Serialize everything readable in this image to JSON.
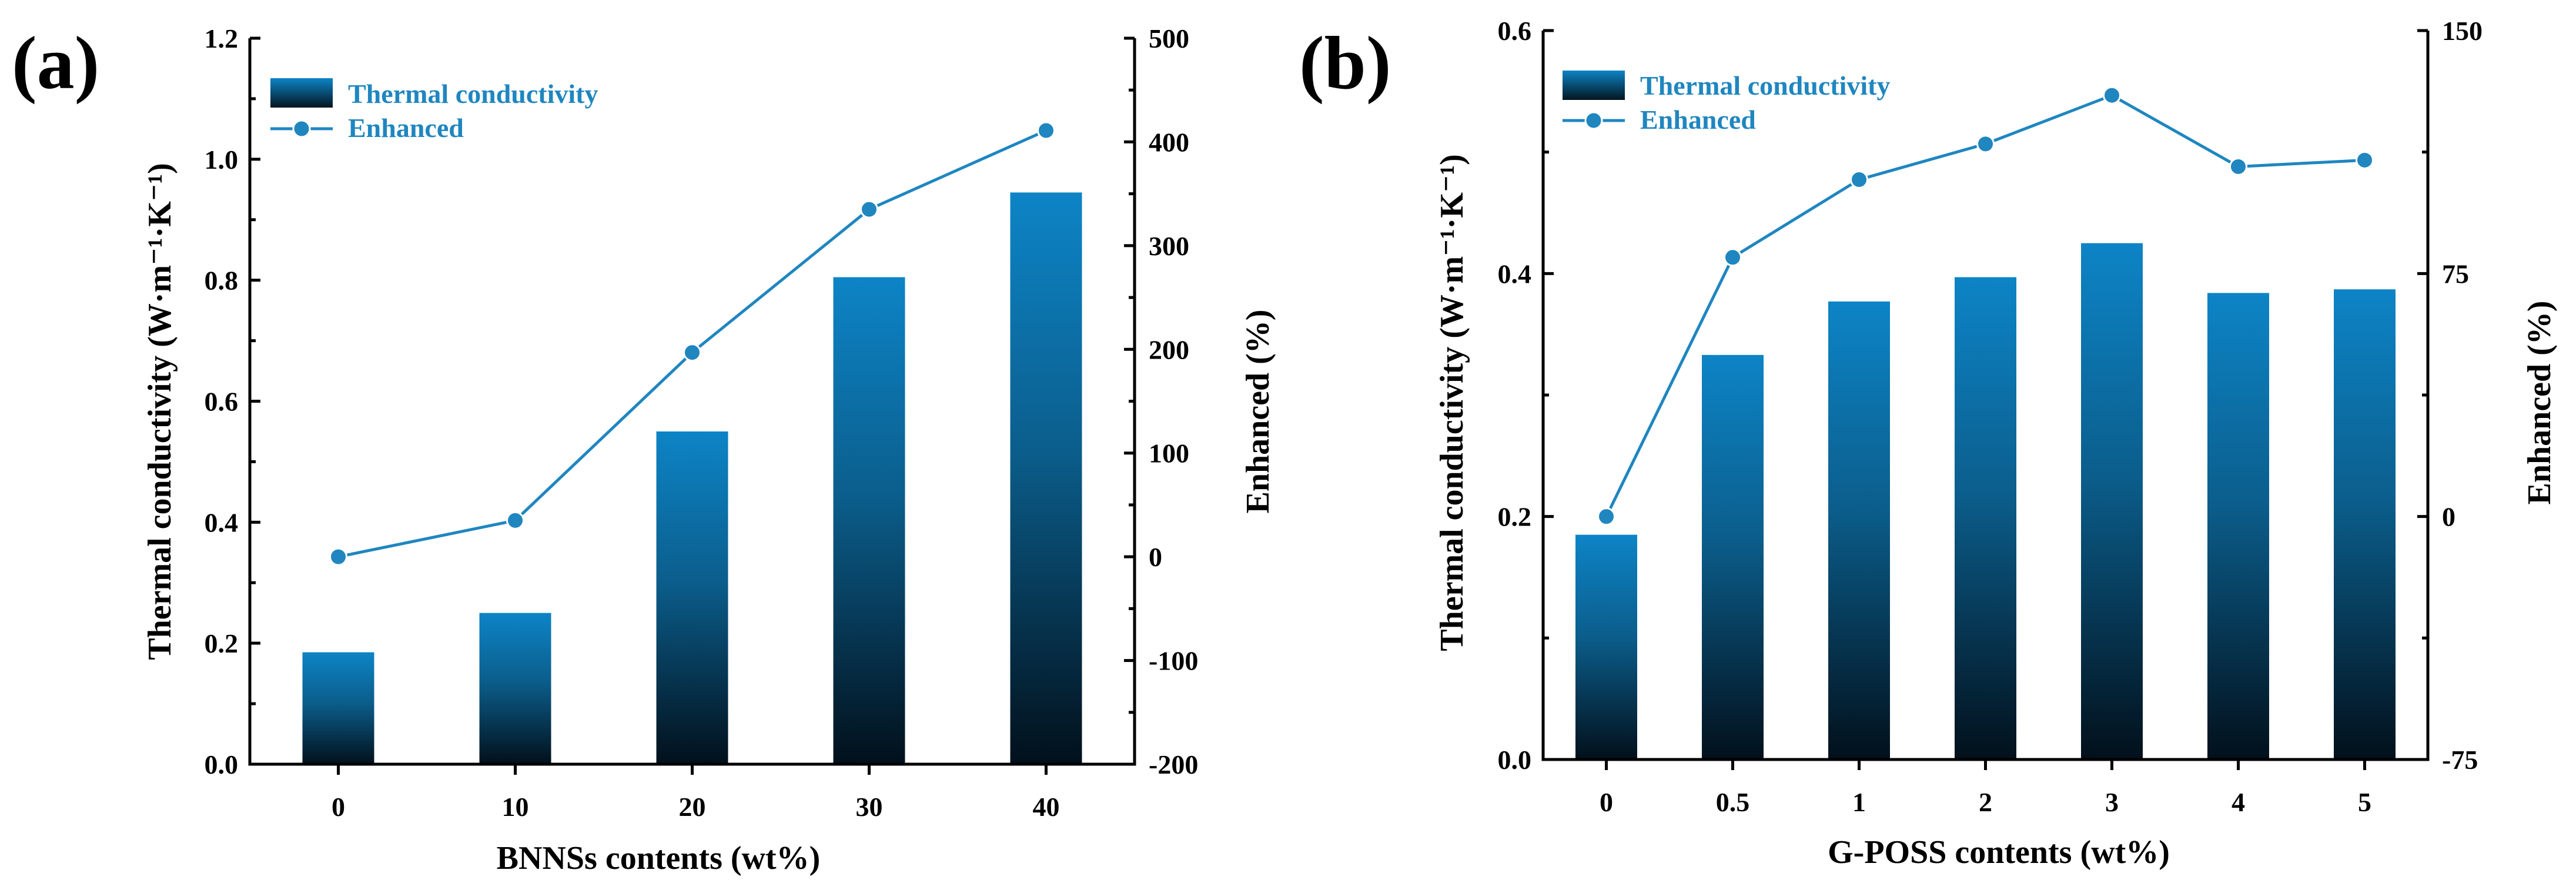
{
  "chart_data": [
    {
      "panel_label": "(a)",
      "type": "bar+line",
      "categories": [
        "0",
        "10",
        "20",
        "30",
        "40"
      ],
      "series": [
        {
          "name": "Thermal conductivity",
          "axis": "left",
          "type": "bar",
          "values": [
            0.185,
            0.25,
            0.55,
            0.805,
            0.945
          ]
        },
        {
          "name": "Enhanced",
          "axis": "right",
          "type": "line",
          "values": [
            0,
            35,
            197,
            335,
            411
          ]
        }
      ],
      "xlabel": "BNNSs contents (wt%)",
      "ylabel_left": "Thermal conductivity (W·m⁻¹·K⁻¹)",
      "ylabel_right": "Enhanced (%)",
      "ylim_left": [
        0,
        1.2
      ],
      "ylim_right": [
        -200,
        500
      ],
      "yticks_left": [
        "0.0",
        "0.2",
        "0.4",
        "0.6",
        "0.8",
        "1.0",
        "1.2"
      ],
      "yticks_right": [
        "-200",
        "-100",
        "0",
        "100",
        "200",
        "300",
        "400",
        "500"
      ],
      "legend": [
        "Thermal conductivity",
        "Enhanced"
      ],
      "legend_position": "top-left",
      "grid": false
    },
    {
      "panel_label": "(b)",
      "type": "bar+line",
      "categories": [
        "0",
        "0.5",
        "1",
        "2",
        "3",
        "4",
        "5"
      ],
      "series": [
        {
          "name": "Thermal conductivity",
          "axis": "left",
          "type": "bar",
          "values": [
            0.185,
            0.333,
            0.377,
            0.397,
            0.425,
            0.384,
            0.387
          ]
        },
        {
          "name": "Enhanced",
          "axis": "right",
          "type": "line",
          "values": [
            0,
            80,
            104,
            115,
            130,
            108,
            110
          ]
        }
      ],
      "xlabel": "G-POSS contents (wt%)",
      "ylabel_left": "Thermal conductivity (W·m⁻¹·K⁻¹)",
      "ylabel_right": "Enhanced (%)",
      "ylim_left": [
        0,
        0.6
      ],
      "ylim_right": [
        -75,
        150
      ],
      "yticks_left": [
        "0.0",
        "0.2",
        "0.4",
        "0.6"
      ],
      "yticks_right": [
        "-75",
        "0",
        "75",
        "150"
      ],
      "legend": [
        "Thermal conductivity",
        "Enhanced"
      ],
      "legend_position": "top-left",
      "grid": false
    }
  ]
}
